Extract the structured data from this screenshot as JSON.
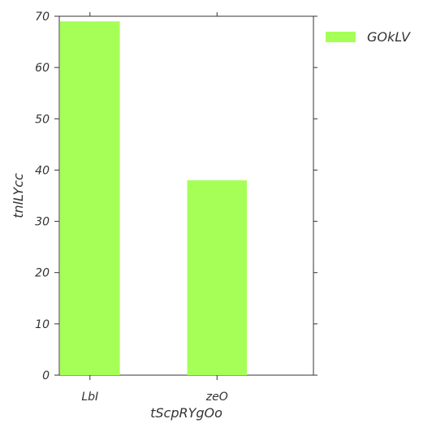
{
  "chart_data": {
    "type": "bar",
    "categories": [
      "LbI",
      "zeO"
    ],
    "series": [
      {
        "name": "GOkLV",
        "values": [
          69,
          38
        ]
      }
    ],
    "xlabel": "tScpRYgOo",
    "ylabel": "tnlLYcc",
    "ylim": [
      0,
      70
    ],
    "yticks": [
      0,
      10,
      20,
      30,
      40,
      50,
      60,
      70
    ],
    "grid": false,
    "legend_position": "outside-top-right",
    "colors": {
      "bar": "#a6ff56",
      "axis": "#333333"
    }
  }
}
